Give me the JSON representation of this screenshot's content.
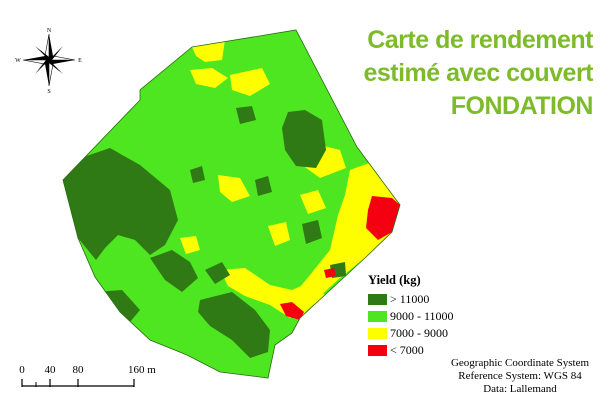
{
  "title": {
    "line1": "Carte de rendement",
    "line2": "estimé avec couvert",
    "line3": "FONDATION"
  },
  "compass": {
    "n": "N",
    "s": "S",
    "e": "E",
    "w": "W"
  },
  "scale_bar": {
    "ticks": [
      "0",
      "40",
      "80",
      "160 m"
    ]
  },
  "legend": {
    "title": "Yield (kg)",
    "items": [
      {
        "label": "> 11000",
        "color": "#2f7a14"
      },
      {
        "label": "9000 - 11000",
        "color": "#4ee620"
      },
      {
        "label": "7000 - 9000",
        "color": "#fefe00"
      },
      {
        "label": "< 7000",
        "color": "#f50011"
      }
    ]
  },
  "credits": {
    "line1": "Geographic Coordinate System",
    "line2": "Reference System: WGS 84",
    "line3": "Data: Lallemand"
  }
}
